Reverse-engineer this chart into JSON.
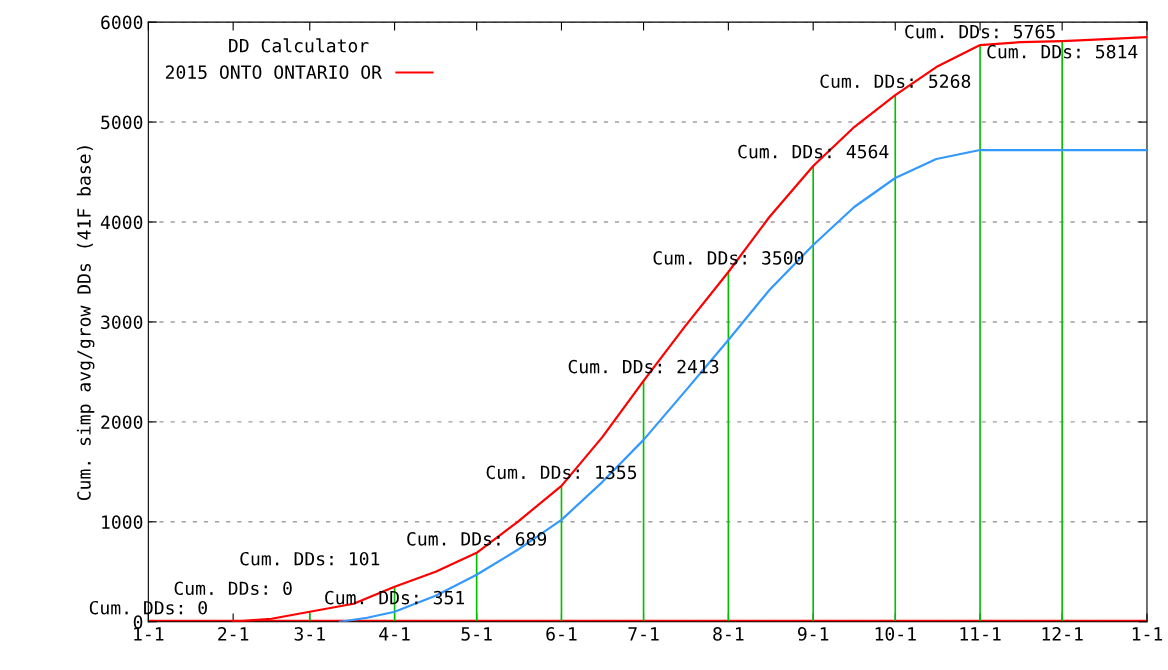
{
  "chart_data": {
    "type": "line",
    "ylabel": "Cum. simp avg/grow DDs (41F base)",
    "legend_title": "DD Calculator",
    "legend": "top left",
    "grid": "y",
    "xlim": [
      "2015-01-01",
      "2016-01-01"
    ],
    "xticks": [
      {
        "value": "2015-01-01",
        "label": "1-1"
      },
      {
        "value": "2015-02-01",
        "label": "2-1"
      },
      {
        "value": "2015-03-01",
        "label": "3-1"
      },
      {
        "value": "2015-04-01",
        "label": "4-1"
      },
      {
        "value": "2015-05-01",
        "label": "5-1"
      },
      {
        "value": "2015-06-01",
        "label": "6-1"
      },
      {
        "value": "2015-07-01",
        "label": "7-1"
      },
      {
        "value": "2015-08-01",
        "label": "8-1"
      },
      {
        "value": "2015-09-01",
        "label": "9-1"
      },
      {
        "value": "2015-10-01",
        "label": "10-1"
      },
      {
        "value": "2015-11-01",
        "label": "11-1"
      },
      {
        "value": "2015-12-01",
        "label": "12-1"
      },
      {
        "value": "2016-01-01",
        "label": "1-1"
      }
    ],
    "ylim": [
      0,
      6000
    ],
    "yticks": [
      0,
      1000,
      2000,
      3000,
      4000,
      5000,
      6000
    ],
    "ref_lines": [
      {
        "axis": "y",
        "value": 0,
        "color": "#ff0000"
      }
    ],
    "series": [
      {
        "type": "bar",
        "color": "#00c000",
        "x": [
          "2015-01-01",
          "2015-02-01",
          "2015-03-01",
          "2015-04-01",
          "2015-05-01",
          "2015-06-01",
          "2015-07-01",
          "2015-08-01",
          "2015-09-01",
          "2015-10-01",
          "2015-11-01",
          "2015-12-01"
        ],
        "values": [
          0,
          0,
          101,
          351,
          689,
          1355,
          2413,
          3500,
          4564,
          5268,
          5765,
          5814
        ],
        "value_labels": [
          "Cum. DDs: 0",
          "Cum. DDs: 0",
          "Cum. DDs: 101",
          "Cum. DDs: 351",
          "Cum. DDs: 689",
          "Cum. DDs: 1355",
          "Cum. DDs: 2413",
          "Cum. DDs: 3500",
          "Cum. DDs: 4564",
          "Cum. DDs: 5268",
          "Cum. DDs: 5765",
          "Cum. DDs: 5814"
        ]
      },
      {
        "color": "#3399ff",
        "x": [
          "2015-03-12",
          "2015-03-22",
          "2015-04-01",
          "2015-04-16",
          "2015-05-01",
          "2015-05-16",
          "2015-06-01",
          "2015-06-16",
          "2015-07-01",
          "2015-07-16",
          "2015-08-01",
          "2015-08-16",
          "2015-09-01",
          "2015-09-16",
          "2015-10-01",
          "2015-10-16",
          "2015-11-01",
          "2015-11-17",
          "2016-01-01"
        ],
        "values": [
          0,
          40,
          100,
          260,
          470,
          720,
          1020,
          1400,
          1820,
          2300,
          2820,
          3320,
          3770,
          4150,
          4440,
          4630,
          4720,
          4720,
          4720
        ]
      },
      {
        "name": "2015 ONTO ONTARIO OR",
        "color": "#ff0000",
        "x": [
          "2015-02-01",
          "2015-02-15",
          "2015-03-01",
          "2015-03-17",
          "2015-04-01",
          "2015-04-16",
          "2015-05-01",
          "2015-05-16",
          "2015-06-01",
          "2015-06-16",
          "2015-07-01",
          "2015-07-16",
          "2015-08-01",
          "2015-08-16",
          "2015-09-01",
          "2015-09-16",
          "2015-10-01",
          "2015-10-16",
          "2015-11-01",
          "2015-11-16",
          "2015-12-01",
          "2015-12-17",
          "2016-01-01"
        ],
        "values": [
          0,
          30,
          100,
          180,
          350,
          500,
          690,
          1000,
          1360,
          1850,
          2410,
          2950,
          3500,
          4050,
          4560,
          4950,
          5270,
          5550,
          5770,
          5800,
          5810,
          5830,
          5850
        ]
      }
    ]
  }
}
